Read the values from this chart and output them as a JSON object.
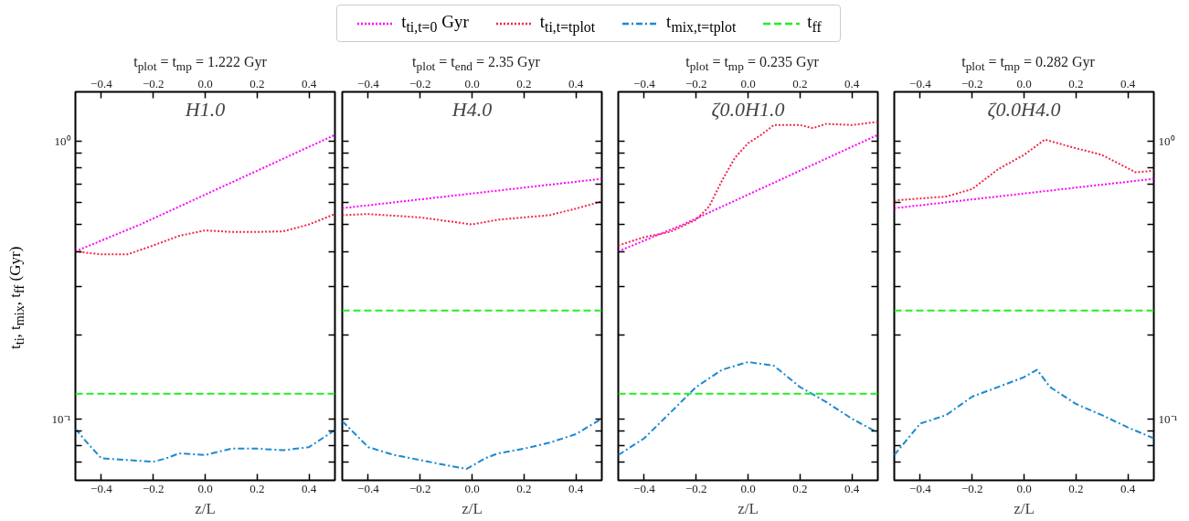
{
  "chart_data": [
    {
      "type": "line",
      "title": "t$_{plot}$ = t$_{mp}$ = 1.222 Gyr",
      "xlabel": "z/L",
      "ylabel": "t$_{ti}$, t$_{mix}$, t$_{ff}$ (Gyr)",
      "annotations": [
        "H1.0"
      ],
      "log": true,
      "legend": "top",
      "grid": false,
      "xlim": [
        -0.5,
        0.5
      ],
      "xticks": [
        {
          "value": -0.4,
          "label": "−0.4"
        },
        {
          "value": -0.2,
          "label": "−0.2"
        },
        {
          "value": 0,
          "label": "0.0"
        },
        {
          "value": 0.2,
          "label": "0.2"
        },
        {
          "value": 0.4,
          "label": "0.4"
        }
      ],
      "x2lim": [
        -0.5,
        0.5
      ],
      "x2ticks": [
        {
          "value": -0.4,
          "label": "−0.4"
        },
        {
          "value": -0.2,
          "label": "−0.2"
        },
        {
          "value": 0,
          "label": "0.0"
        },
        {
          "value": 0.2,
          "label": "0.2"
        },
        {
          "value": 0.4,
          "label": "0.4"
        }
      ],
      "ylim": [
        0.06,
        1.5
      ],
      "yticks": [
        {
          "value": 0.07,
          "label": null
        },
        {
          "value": 0.08,
          "label": null
        },
        {
          "value": 0.09,
          "label": null
        },
        {
          "value": 0.1,
          "label": "10⁻¹"
        },
        {
          "value": 0.2,
          "label": null
        },
        {
          "value": 0.3,
          "label": null
        },
        {
          "value": 0.4,
          "label": null
        },
        {
          "value": 0.5,
          "label": null
        },
        {
          "value": 0.6,
          "label": null
        },
        {
          "value": 0.7,
          "label": null
        },
        {
          "value": 0.8,
          "label": null
        },
        {
          "value": 0.9,
          "label": null
        },
        {
          "value": 1,
          "label": "10⁰"
        }
      ],
      "series": [
        {
          "name": "t$_{ti,t=0}$ Gyr",
          "color": "#ff00ff",
          "line_style": "dotted",
          "x": [
            -0.5,
            -0.25,
            0.0,
            0.25,
            0.5
          ],
          "values": [
            0.4,
            0.5,
            0.64,
            0.82,
            1.05
          ]
        },
        {
          "name": "t$_{ti,t=tplot}$",
          "color": "#f0284a",
          "line_style": "dotted",
          "x": [
            -0.5,
            -0.4,
            -0.3,
            -0.2,
            -0.1,
            0.0,
            0.1,
            0.2,
            0.3,
            0.4,
            0.5
          ],
          "values": [
            0.4,
            0.39,
            0.39,
            0.42,
            0.455,
            0.476,
            0.47,
            0.47,
            0.472,
            0.5,
            0.545
          ]
        },
        {
          "name": "t$_{mix,t=tplot}$",
          "color": "#1c8ad0",
          "line_style": "dashdot",
          "x": [
            -0.5,
            -0.45,
            -0.4,
            -0.3,
            -0.2,
            -0.15,
            -0.1,
            0.0,
            0.1,
            0.2,
            0.3,
            0.4,
            0.5
          ],
          "values": [
            0.092,
            0.081,
            0.072,
            0.071,
            0.07,
            0.072,
            0.075,
            0.074,
            0.078,
            0.078,
            0.077,
            0.079,
            0.091
          ]
        },
        {
          "name": "t$_{ff}$",
          "color": "#22ee22",
          "line_style": "dashed",
          "x": [
            -0.5,
            0.5
          ],
          "values": [
            0.123,
            0.123
          ]
        }
      ]
    },
    {
      "type": "line",
      "title": "t$_{plot}$ = t$_{end}$ = 2.35 Gyr",
      "xlabel": "z/L",
      "annotations": [
        "H4.0"
      ],
      "log": true,
      "grid": false,
      "tick_labels": "x",
      "xlim": [
        -0.5,
        0.5
      ],
      "xticks": [
        {
          "value": -0.4,
          "label": "−0.4"
        },
        {
          "value": -0.2,
          "label": "−0.2"
        },
        {
          "value": 0,
          "label": "0.0"
        },
        {
          "value": 0.2,
          "label": "0.2"
        },
        {
          "value": 0.4,
          "label": "0.4"
        }
      ],
      "x2lim": [
        -0.5,
        0.5
      ],
      "x2ticks": [
        {
          "value": -0.4,
          "label": "−0.4"
        },
        {
          "value": -0.2,
          "label": "−0.2"
        },
        {
          "value": 0,
          "label": "0.0"
        },
        {
          "value": 0.2,
          "label": "0.2"
        },
        {
          "value": 0.4,
          "label": "0.4"
        }
      ],
      "ylim": [
        0.06,
        1.5
      ],
      "yticks": [
        {
          "value": 0.07,
          "label": null
        },
        {
          "value": 0.08,
          "label": null
        },
        {
          "value": 0.09,
          "label": null
        },
        {
          "value": 0.1,
          "label": null
        },
        {
          "value": 0.2,
          "label": null
        },
        {
          "value": 0.3,
          "label": null
        },
        {
          "value": 0.4,
          "label": null
        },
        {
          "value": 0.5,
          "label": null
        },
        {
          "value": 0.6,
          "label": null
        },
        {
          "value": 0.7,
          "label": null
        },
        {
          "value": 0.8,
          "label": null
        },
        {
          "value": 0.9,
          "label": null
        },
        {
          "value": 1,
          "label": null
        }
      ],
      "series": [
        {
          "color": "#ff00ff",
          "line_style": "dotted",
          "x": [
            -0.5,
            0.0,
            0.5
          ],
          "values": [
            0.572,
            0.646,
            0.73
          ]
        },
        {
          "color": "#f0284a",
          "line_style": "dotted",
          "x": [
            -0.5,
            -0.4,
            -0.2,
            0.0,
            0.1,
            0.2,
            0.3,
            0.4,
            0.5
          ],
          "values": [
            0.54,
            0.545,
            0.53,
            0.5,
            0.52,
            0.53,
            0.54,
            0.57,
            0.605
          ]
        },
        {
          "color": "#1c8ad0",
          "line_style": "dashdot",
          "x": [
            -0.5,
            -0.4,
            -0.3,
            -0.2,
            -0.1,
            -0.02,
            0.05,
            0.1,
            0.2,
            0.3,
            0.4,
            0.5
          ],
          "values": [
            0.098,
            0.079,
            0.074,
            0.071,
            0.068,
            0.066,
            0.072,
            0.075,
            0.078,
            0.082,
            0.088,
            0.1
          ]
        },
        {
          "color": "#22ee22",
          "line_style": "dashed",
          "x": [
            -0.5,
            0.5
          ],
          "values": [
            0.245,
            0.245
          ]
        }
      ]
    },
    {
      "type": "line",
      "title": "t$_{plot}$ = t$_{mp}$ = 0.235 Gyr",
      "xlabel": "z/L",
      "annotations": [
        "ζ0.0H1.0"
      ],
      "log": true,
      "grid": false,
      "tick_labels": "x",
      "xlim": [
        -0.5,
        0.5
      ],
      "xticks": [
        {
          "value": -0.4,
          "label": "−0.4"
        },
        {
          "value": -0.2,
          "label": "−0.2"
        },
        {
          "value": 0,
          "label": "0.0"
        },
        {
          "value": 0.2,
          "label": "0.2"
        },
        {
          "value": 0.4,
          "label": "0.4"
        }
      ],
      "x2lim": [
        -0.5,
        0.5
      ],
      "x2ticks": [
        {
          "value": -0.4,
          "label": "−0.4"
        },
        {
          "value": -0.2,
          "label": "−0.2"
        },
        {
          "value": 0,
          "label": "0.0"
        },
        {
          "value": 0.2,
          "label": "0.2"
        },
        {
          "value": 0.4,
          "label": "0.4"
        }
      ],
      "ylim": [
        0.06,
        1.5
      ],
      "yticks": [
        {
          "value": 0.07,
          "label": null
        },
        {
          "value": 0.08,
          "label": null
        },
        {
          "value": 0.09,
          "label": null
        },
        {
          "value": 0.1,
          "label": null
        },
        {
          "value": 0.2,
          "label": null
        },
        {
          "value": 0.3,
          "label": null
        },
        {
          "value": 0.4,
          "label": null
        },
        {
          "value": 0.5,
          "label": null
        },
        {
          "value": 0.6,
          "label": null
        },
        {
          "value": 0.7,
          "label": null
        },
        {
          "value": 0.8,
          "label": null
        },
        {
          "value": 0.9,
          "label": null
        },
        {
          "value": 1,
          "label": null
        }
      ],
      "series": [
        {
          "color": "#ff00ff",
          "line_style": "dotted",
          "x": [
            -0.5,
            -0.25,
            0.0,
            0.25,
            0.5
          ],
          "values": [
            0.4,
            0.5,
            0.64,
            0.82,
            1.05
          ]
        },
        {
          "color": "#f0284a",
          "line_style": "dotted",
          "x": [
            -0.5,
            -0.4,
            -0.3,
            -0.2,
            -0.15,
            -0.1,
            -0.05,
            0.0,
            0.05,
            0.1,
            0.2,
            0.25,
            0.3,
            0.4,
            0.5
          ],
          "values": [
            0.42,
            0.45,
            0.47,
            0.52,
            0.58,
            0.72,
            0.87,
            0.98,
            1.05,
            1.14,
            1.14,
            1.11,
            1.15,
            1.14,
            1.17
          ]
        },
        {
          "color": "#1c8ad0",
          "line_style": "dashdot",
          "x": [
            -0.5,
            -0.4,
            -0.3,
            -0.2,
            -0.1,
            0.0,
            0.1,
            0.2,
            0.3,
            0.4,
            0.5
          ],
          "values": [
            0.074,
            0.085,
            0.105,
            0.13,
            0.15,
            0.16,
            0.155,
            0.13,
            0.115,
            0.1,
            0.089
          ]
        },
        {
          "color": "#22ee22",
          "line_style": "dashed",
          "x": [
            -0.5,
            0.5
          ],
          "values": [
            0.123,
            0.123
          ]
        }
      ]
    },
    {
      "type": "line",
      "title": "t$_{plot}$ = t$_{mp}$ = 0.282 Gyr",
      "xlabel": "z/L",
      "annotations": [
        "ζ0.0H4.0"
      ],
      "log": "y2",
      "grid": false,
      "xlim": [
        -0.5,
        0.5
      ],
      "xticks": [
        {
          "value": -0.4,
          "label": "−0.4"
        },
        {
          "value": -0.2,
          "label": "−0.2"
        },
        {
          "value": 0,
          "label": "0.0"
        },
        {
          "value": 0.2,
          "label": "0.2"
        },
        {
          "value": 0.4,
          "label": "0.4"
        }
      ],
      "x2lim": [
        -0.5,
        0.5
      ],
      "x2ticks": [
        {
          "value": -0.4,
          "label": "−0.4"
        },
        {
          "value": -0.2,
          "label": "−0.2"
        },
        {
          "value": 0,
          "label": "0.0"
        },
        {
          "value": 0.2,
          "label": "0.2"
        },
        {
          "value": 0.4,
          "label": "0.4"
        }
      ],
      "y2lim": [
        0.06,
        1.5
      ],
      "y2ticks": [
        {
          "value": 0.07,
          "label": null
        },
        {
          "value": 0.08,
          "label": null
        },
        {
          "value": 0.09,
          "label": null
        },
        {
          "value": 0.1,
          "label": "10⁻¹"
        },
        {
          "value": 0.2,
          "label": null
        },
        {
          "value": 0.3,
          "label": null
        },
        {
          "value": 0.4,
          "label": null
        },
        {
          "value": 0.5,
          "label": null
        },
        {
          "value": 0.6,
          "label": null
        },
        {
          "value": 0.7,
          "label": null
        },
        {
          "value": 0.8,
          "label": null
        },
        {
          "value": 0.9,
          "label": null
        },
        {
          "value": 1,
          "label": "10⁰"
        }
      ],
      "series": [
        {
          "axis": "y2",
          "color": "#ff00ff",
          "line_style": "dotted",
          "x": [
            -0.5,
            0.0,
            0.5
          ],
          "values": [
            0.572,
            0.646,
            0.73
          ]
        },
        {
          "axis": "y2",
          "color": "#f0284a",
          "line_style": "dotted",
          "x": [
            -0.5,
            -0.4,
            -0.3,
            -0.2,
            -0.1,
            0.0,
            0.08,
            0.2,
            0.3,
            0.43,
            0.5
          ],
          "values": [
            0.61,
            0.62,
            0.63,
            0.67,
            0.79,
            0.89,
            1.01,
            0.94,
            0.89,
            0.77,
            0.78
          ]
        },
        {
          "axis": "y2",
          "color": "#1c8ad0",
          "line_style": "dashdot",
          "x": [
            -0.5,
            -0.4,
            -0.3,
            -0.2,
            -0.1,
            0.0,
            0.05,
            0.1,
            0.2,
            0.3,
            0.4,
            0.5
          ],
          "values": [
            0.074,
            0.096,
            0.103,
            0.12,
            0.13,
            0.141,
            0.15,
            0.13,
            0.113,
            0.103,
            0.093,
            0.085
          ]
        },
        {
          "axis": "y2",
          "color": "#22ee22",
          "line_style": "dashed",
          "x": [
            -0.5,
            0.5
          ],
          "values": [
            0.245,
            0.245
          ]
        }
      ]
    }
  ]
}
